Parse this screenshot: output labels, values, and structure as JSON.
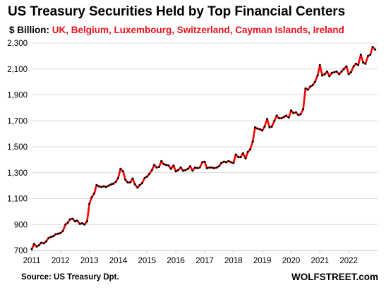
{
  "chart_data": {
    "type": "line",
    "title": "US Treasury Securities Held by Top Financial Centers",
    "subtitle_unit": "$ Billion:",
    "subtitle_countries": "UK, Belgium, Luxembourg, Switzerland, Cayman Islands, Ireland",
    "xlabel": "",
    "ylabel": "",
    "ylim": [
      700,
      2300
    ],
    "xlim": [
      2011.0,
      2023.0
    ],
    "y_ticks": [
      "700",
      "900",
      "1,100",
      "1,300",
      "1,500",
      "1,700",
      "1,900",
      "2,100",
      "2,300"
    ],
    "x_ticks": [
      "2011",
      "2012",
      "2013",
      "2014",
      "2015",
      "2016",
      "2017",
      "2018",
      "2019",
      "2020",
      "2021",
      "2022"
    ],
    "grid": "horizontal",
    "legend": "none",
    "line_color": "#ff0000",
    "marker_color": "#000000",
    "series": [
      {
        "x": [
          2011.0,
          2011.08,
          2011.17,
          2011.25,
          2011.33,
          2011.42,
          2011.5,
          2011.58,
          2011.67,
          2011.75,
          2011.83,
          2011.92,
          2012.0,
          2012.08,
          2012.17,
          2012.25,
          2012.33,
          2012.42,
          2012.5,
          2012.58,
          2012.67,
          2012.75,
          2012.83,
          2012.92,
          2013.0,
          2013.08,
          2013.17,
          2013.25,
          2013.33,
          2013.42,
          2013.5,
          2013.58,
          2013.67,
          2013.75,
          2013.83,
          2013.92,
          2014.0,
          2014.08,
          2014.17,
          2014.25,
          2014.33,
          2014.42,
          2014.5,
          2014.58,
          2014.67,
          2014.75,
          2014.83,
          2014.92,
          2015.0,
          2015.08,
          2015.17,
          2015.25,
          2015.33,
          2015.42,
          2015.5,
          2015.58,
          2015.67,
          2015.75,
          2015.83,
          2015.92,
          2016.0,
          2016.08,
          2016.17,
          2016.25,
          2016.33,
          2016.42,
          2016.5,
          2016.58,
          2016.67,
          2016.75,
          2016.83,
          2016.92,
          2017.0,
          2017.08,
          2017.17,
          2017.25,
          2017.33,
          2017.42,
          2017.5,
          2017.58,
          2017.67,
          2017.75,
          2017.83,
          2017.92,
          2018.0,
          2018.08,
          2018.17,
          2018.25,
          2018.33,
          2018.42,
          2018.5,
          2018.58,
          2018.67,
          2018.75,
          2018.83,
          2018.92,
          2019.0,
          2019.08,
          2019.17,
          2019.25,
          2019.33,
          2019.42,
          2019.5,
          2019.58,
          2019.67,
          2019.75,
          2019.83,
          2019.92,
          2020.0,
          2020.08,
          2020.17,
          2020.25,
          2020.33,
          2020.42,
          2020.5,
          2020.58,
          2020.67,
          2020.75,
          2020.83,
          2020.92,
          2021.0,
          2021.08,
          2021.17,
          2021.25,
          2021.33,
          2021.42,
          2021.5,
          2021.58,
          2021.67,
          2021.75,
          2021.83,
          2021.92,
          2022.0,
          2022.08,
          2022.17,
          2022.25,
          2022.33,
          2022.42,
          2022.5,
          2022.58,
          2022.67,
          2022.75,
          2022.83,
          2022.92
        ],
        "values": [
          710,
          750,
          730,
          740,
          760,
          755,
          770,
          795,
          805,
          810,
          825,
          830,
          835,
          850,
          900,
          915,
          940,
          945,
          925,
          930,
          905,
          910,
          900,
          925,
          1060,
          1110,
          1140,
          1205,
          1195,
          1190,
          1195,
          1190,
          1200,
          1210,
          1215,
          1230,
          1260,
          1330,
          1310,
          1245,
          1225,
          1225,
          1255,
          1210,
          1185,
          1205,
          1220,
          1260,
          1270,
          1290,
          1320,
          1360,
          1340,
          1345,
          1390,
          1365,
          1360,
          1355,
          1330,
          1355,
          1310,
          1320,
          1340,
          1315,
          1320,
          1330,
          1350,
          1315,
          1340,
          1335,
          1340,
          1380,
          1385,
          1335,
          1340,
          1340,
          1335,
          1340,
          1350,
          1375,
          1385,
          1380,
          1390,
          1380,
          1375,
          1440,
          1420,
          1420,
          1450,
          1410,
          1460,
          1480,
          1540,
          1650,
          1640,
          1635,
          1625,
          1655,
          1715,
          1650,
          1655,
          1700,
          1740,
          1720,
          1720,
          1730,
          1740,
          1725,
          1780,
          1760,
          1765,
          1745,
          1750,
          1790,
          1950,
          1940,
          1965,
          1975,
          2000,
          2050,
          2130,
          2050,
          2060,
          2080,
          2045,
          2070,
          2075,
          2080,
          2060,
          2080,
          2100,
          2120,
          2060,
          2075,
          2120,
          2140,
          2130,
          2210,
          2150,
          2140,
          2200,
          2210,
          2270,
          2250
        ]
      }
    ]
  },
  "footer": {
    "source": "Source: US Treasury  Dpt.",
    "brand": "WOLFSTREET.com"
  }
}
